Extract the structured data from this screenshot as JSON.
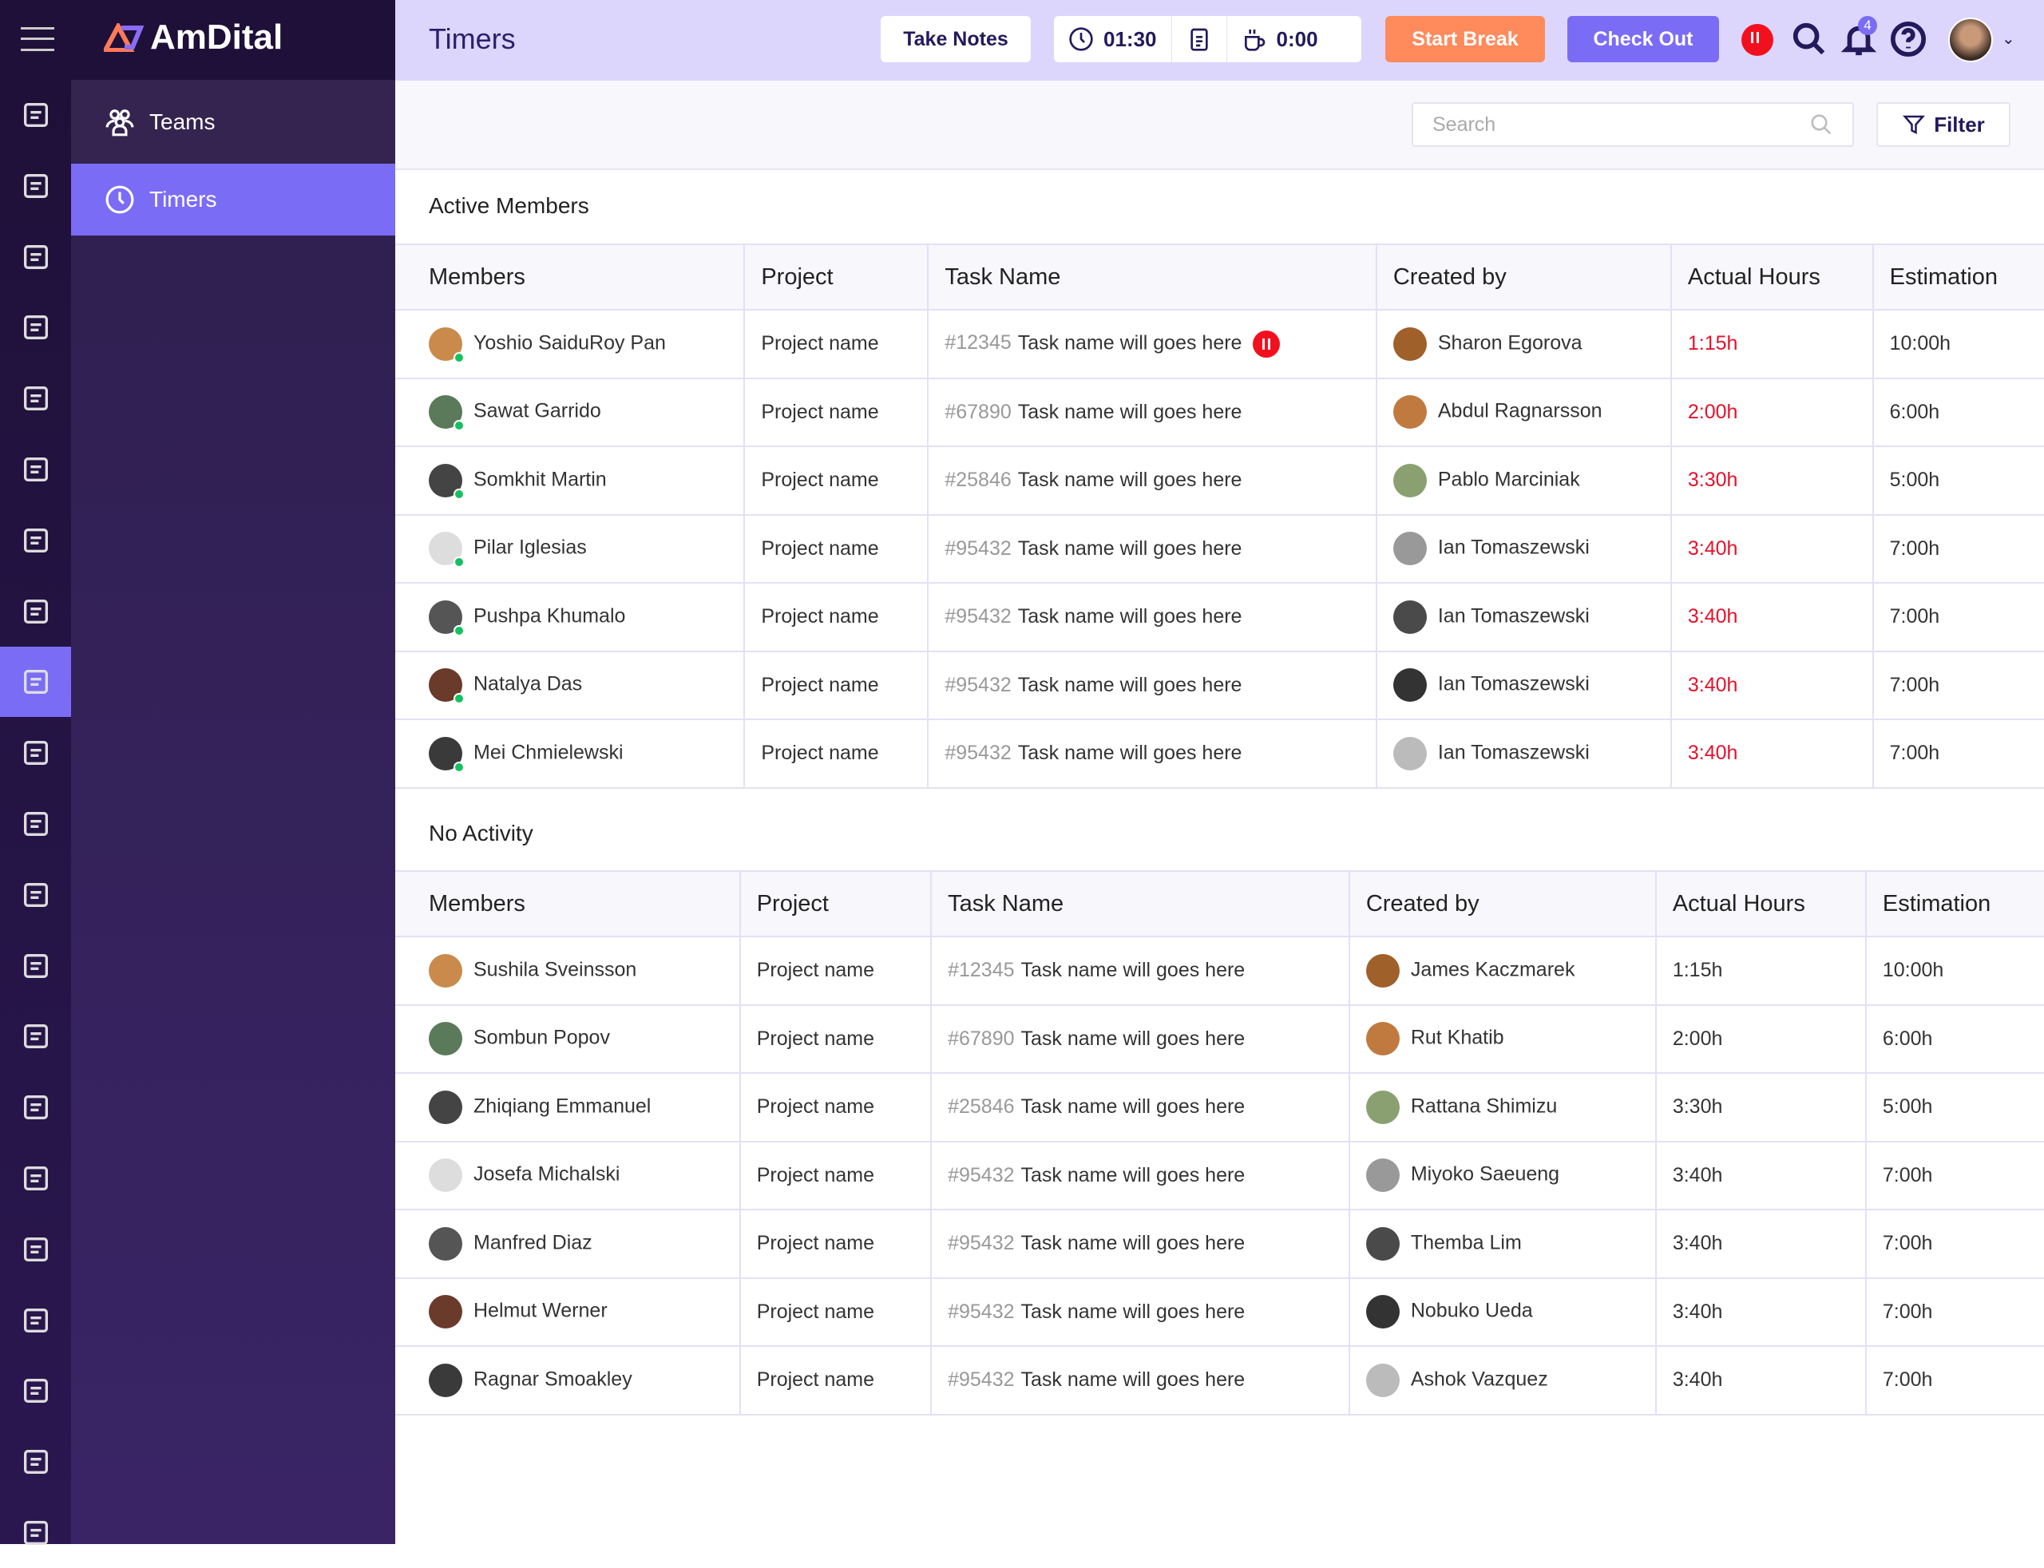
{
  "app": {
    "name": "AmDital",
    "page_title": "Timers"
  },
  "sidebar": {
    "nav": [
      {
        "label": "Teams",
        "icon": "users-icon"
      },
      {
        "label": "Timers",
        "icon": "clock-icon",
        "active": true
      }
    ],
    "rail_icons": [
      "dashboard-icon",
      "calendar-icon",
      "chat-icon",
      "monitor-icon",
      "bar-chart-icon",
      "umbrella-icon",
      "document-icon",
      "calendar-clock-icon",
      "team-icon",
      "user-check-icon",
      "filter-lines-icon",
      "dollar-icon",
      "ticket-icon",
      "edit-icon",
      "user-circle-icon",
      "money-bag-icon",
      "video-icon",
      "report-icon",
      "search-user-icon",
      "user-icon",
      "growth-chart-icon"
    ]
  },
  "header": {
    "take_notes": "Take Notes",
    "work_timer": "01:30",
    "break_timer": "0:00",
    "start_break": "Start Break",
    "check_out": "Check Out",
    "notifications": "4",
    "colors": {
      "start_break": "#ff8a5c",
      "check_out": "#7b6cf6",
      "pause": "#f3101e"
    }
  },
  "toolbar": {
    "search_placeholder": "Search",
    "filter": "Filter"
  },
  "columns": [
    "Members",
    "Project",
    "Task Name",
    "Created by",
    "Actual Hours",
    "Estimation"
  ],
  "active": {
    "title": "Active Members",
    "rows": [
      [
        "Yoshio SaiduRoy Pan",
        "Project name",
        "#12345",
        "Task name will goes here",
        "Sharon Egorova",
        "1:15h",
        "10:00h"
      ],
      [
        "Sawat Garrido",
        "Project name",
        "#67890",
        "Task name will goes here",
        "Abdul Ragnarsson",
        "2:00h",
        "6:00h"
      ],
      [
        "Somkhit Martin",
        "Project name",
        "#25846",
        "Task name will goes here",
        "Pablo Marciniak",
        "3:30h",
        "5:00h"
      ],
      [
        "Pilar Iglesias",
        "Project name",
        "#95432",
        "Task name will goes here",
        "Ian Tomaszewski",
        "3:40h",
        "7:00h"
      ],
      [
        "Pushpa Khumalo",
        "Project name",
        "#95432",
        "Task name will goes here",
        "Ian Tomaszewski",
        "3:40h",
        "7:00h"
      ],
      [
        "Natalya Das",
        "Project name",
        "#95432",
        "Task name will goes here",
        "Ian Tomaszewski",
        "3:40h",
        "7:00h"
      ],
      [
        "Mei Chmielewski",
        "Project name",
        "#95432",
        "Task name will goes here",
        "Ian Tomaszewski",
        "3:40h",
        "7:00h"
      ]
    ]
  },
  "inactive": {
    "title": "No Activity",
    "rows": [
      [
        "Sushila Sveinsson",
        "Project name",
        "#12345",
        "Task name will goes here",
        "James Kaczmarek",
        "1:15h",
        "10:00h"
      ],
      [
        "Sombun Popov",
        "Project name",
        "#67890",
        "Task name will goes here",
        "Rut Khatib",
        "2:00h",
        "6:00h"
      ],
      [
        "Zhiqiang Emmanuel",
        "Project name",
        "#25846",
        "Task name will goes here",
        "Rattana Shimizu",
        "3:30h",
        "5:00h"
      ],
      [
        "Josefa Michalski",
        "Project name",
        "#95432",
        "Task name will goes here",
        "Miyoko Saeueng",
        "3:40h",
        "7:00h"
      ],
      [
        "Manfred Diaz",
        "Project name",
        "#95432",
        "Task name will goes here",
        "Themba Lim",
        "3:40h",
        "7:00h"
      ],
      [
        "Helmut Werner",
        "Project name",
        "#95432",
        "Task name will goes here",
        "Nobuko Ueda",
        "3:40h",
        "7:00h"
      ],
      [
        "Ragnar Smoakley",
        "Project name",
        "#95432",
        "Task name will goes here",
        "Ashok Vazquez",
        "3:40h",
        "7:00h"
      ]
    ]
  }
}
